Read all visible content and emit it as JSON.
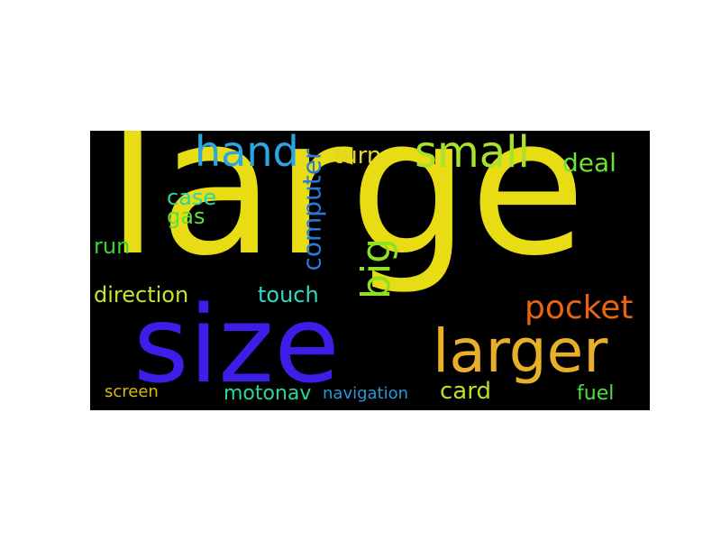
{
  "words": [
    {
      "key": "large",
      "text": "large",
      "color": "#e8dc14"
    },
    {
      "key": "size",
      "text": "size",
      "color": "#3c1ee8"
    },
    {
      "key": "larger",
      "text": "larger",
      "color": "#e8b028"
    },
    {
      "key": "hand",
      "text": "hand",
      "color": "#2aa6e2"
    },
    {
      "key": "small",
      "text": "small",
      "color": "#a8e22a"
    },
    {
      "key": "pocket",
      "text": "pocket",
      "color": "#e86414"
    },
    {
      "key": "big",
      "text": "big",
      "color": "#8ce21e"
    },
    {
      "key": "computer",
      "text": "computer",
      "color": "#2a78d8"
    },
    {
      "key": "turn",
      "text": "turn",
      "color": "#e2d62a"
    },
    {
      "key": "deal",
      "text": "deal",
      "color": "#6ce23a"
    },
    {
      "key": "case",
      "text": "case",
      "color": "#2ad6a6"
    },
    {
      "key": "gas",
      "text": "gas",
      "color": "#58e23a"
    },
    {
      "key": "run",
      "text": "run",
      "color": "#3ad636"
    },
    {
      "key": "direction",
      "text": "direction",
      "color": "#c6e22a"
    },
    {
      "key": "touch",
      "text": "touch",
      "color": "#2adcc6"
    },
    {
      "key": "card",
      "text": "card",
      "color": "#b8e22a"
    },
    {
      "key": "fuel",
      "text": "fuel",
      "color": "#48e23a"
    },
    {
      "key": "screen",
      "text": "screen",
      "color": "#d8b81a"
    },
    {
      "key": "motonav",
      "text": "motonav",
      "color": "#2ad698"
    },
    {
      "key": "navigation",
      "text": "navigation",
      "color": "#2a98d8"
    }
  ]
}
